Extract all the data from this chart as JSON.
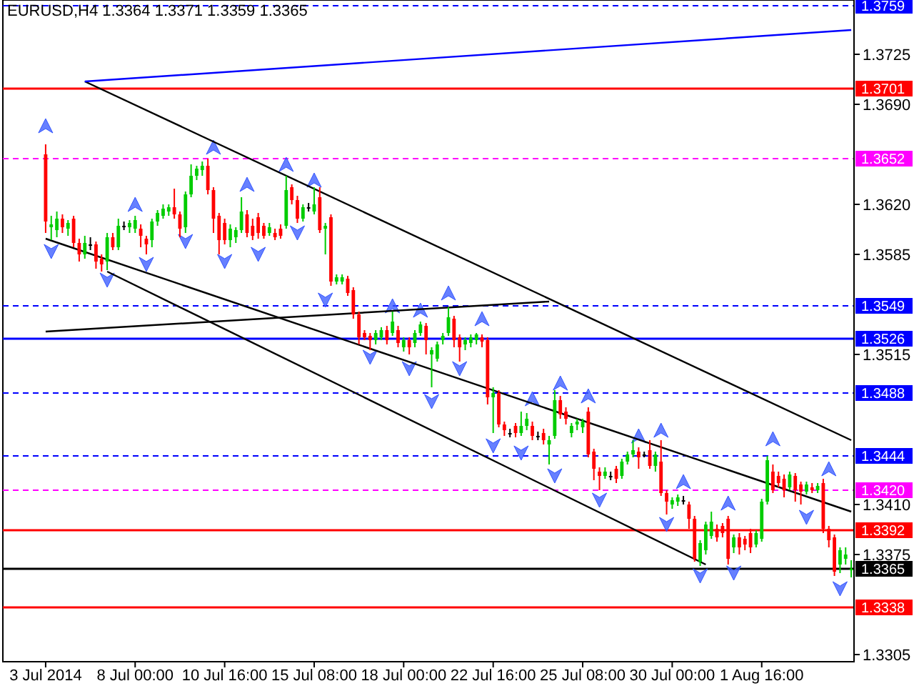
{
  "chart_data": {
    "type": "candlestick",
    "title": "EURUSD,H4  1.3364 1.3371 1.3359 1.3365",
    "categories": [
      "3 Jul 2014",
      null,
      null,
      null,
      null,
      null,
      null,
      null,
      null,
      null,
      null,
      null,
      null,
      null,
      null,
      null,
      "8 Jul 00:00",
      null,
      null,
      null,
      null,
      null,
      null,
      null,
      null,
      null,
      null,
      null,
      null,
      null,
      null,
      null,
      "10 Jul 16:00",
      null,
      null,
      null,
      null,
      null,
      null,
      null,
      null,
      null,
      null,
      null,
      null,
      null,
      null,
      null,
      "15 Jul 08:00",
      null,
      null,
      null,
      null,
      null,
      null,
      null,
      null,
      null,
      null,
      null,
      null,
      null,
      null,
      null,
      "18 Jul 00:00",
      null,
      null,
      null,
      null,
      null,
      null,
      null,
      null,
      null,
      null,
      null,
      null,
      null,
      null,
      null,
      "22 Jul 16:00",
      null,
      null,
      null,
      null,
      null,
      null,
      null,
      null,
      null,
      null,
      null,
      null,
      null,
      null,
      null,
      "25 Jul 08:00",
      null,
      null,
      null,
      null,
      null,
      null,
      null,
      null,
      null,
      null,
      null,
      null,
      null,
      null,
      null,
      "30 Jul 00:00",
      null,
      null,
      null,
      null,
      null,
      null,
      null,
      null,
      null,
      null,
      null,
      null,
      null,
      null,
      null,
      "1 Aug 16:00",
      null,
      null,
      null,
      null,
      null,
      null,
      null,
      null,
      null,
      null,
      null,
      null,
      null,
      null,
      null,
      null
    ],
    "ohlc": [
      [
        1.3655,
        1.3662,
        1.36,
        1.3608
      ],
      [
        1.3604,
        1.3612,
        1.3595,
        1.3606
      ],
      [
        1.3602,
        1.3615,
        1.3597,
        1.361
      ],
      [
        1.361,
        1.3613,
        1.36,
        1.3604
      ],
      [
        1.3603,
        1.3609,
        1.3598,
        1.3607
      ],
      [
        1.361,
        1.3612,
        1.359,
        1.3593
      ],
      [
        1.3593,
        1.3596,
        1.358,
        1.3585
      ],
      [
        1.3585,
        1.3598,
        1.3582,
        1.3593
      ],
      [
        1.3592,
        1.3597,
        1.3588,
        1.3592
      ],
      [
        1.3592,
        1.3594,
        1.3575,
        1.358
      ],
      [
        1.3582,
        1.3585,
        1.3573,
        1.3578
      ],
      [
        1.358,
        1.36,
        1.3574,
        1.3597
      ],
      [
        1.3597,
        1.36,
        1.3588,
        1.359
      ],
      [
        1.359,
        1.361,
        1.3588,
        1.3605
      ],
      [
        1.3605,
        1.3608,
        1.3602,
        1.3605
      ],
      [
        1.3604,
        1.3609,
        1.36,
        1.3607
      ],
      [
        1.3603,
        1.3612,
        1.36,
        1.3609
      ],
      [
        1.3603,
        1.3606,
        1.359,
        1.3598
      ],
      [
        1.3596,
        1.3598,
        1.3585,
        1.3592
      ],
      [
        1.3595,
        1.361,
        1.359,
        1.3608
      ],
      [
        1.3608,
        1.3616,
        1.3605,
        1.3614
      ],
      [
        1.3612,
        1.362,
        1.361,
        1.3617
      ],
      [
        1.3615,
        1.362,
        1.3612,
        1.3618
      ],
      [
        1.3618,
        1.3631,
        1.361,
        1.3613
      ],
      [
        1.3613,
        1.3615,
        1.3597,
        1.3603
      ],
      [
        1.3604,
        1.3629,
        1.36,
        1.3627
      ],
      [
        1.3627,
        1.3648,
        1.3625,
        1.364
      ],
      [
        1.364,
        1.3647,
        1.3637,
        1.3645
      ],
      [
        1.3644,
        1.365,
        1.364,
        1.3647
      ],
      [
        1.3647,
        1.3652,
        1.3627,
        1.363
      ],
      [
        1.363,
        1.3632,
        1.36,
        1.361
      ],
      [
        1.3612,
        1.3614,
        1.3585,
        1.3595
      ],
      [
        1.3607,
        1.361,
        1.3592,
        1.3595
      ],
      [
        1.3595,
        1.3606,
        1.359,
        1.3603
      ],
      [
        1.3597,
        1.3604,
        1.3593,
        1.3602
      ],
      [
        1.3602,
        1.3625,
        1.36,
        1.3615
      ],
      [
        1.3613,
        1.3616,
        1.3597,
        1.36
      ],
      [
        1.3605,
        1.361,
        1.3595,
        1.3598
      ],
      [
        1.3611,
        1.3614,
        1.3596,
        1.36
      ],
      [
        1.3605,
        1.3607,
        1.3596,
        1.3598
      ],
      [
        1.36,
        1.3607,
        1.3598,
        1.3604
      ],
      [
        1.36,
        1.3603,
        1.3595,
        1.3597
      ],
      [
        1.3603,
        1.3606,
        1.3596,
        1.3598
      ],
      [
        1.3605,
        1.364,
        1.3603,
        1.363
      ],
      [
        1.3632,
        1.3634,
        1.362,
        1.3623
      ],
      [
        1.3623,
        1.3626,
        1.3607,
        1.361
      ],
      [
        1.361,
        1.362,
        1.3608,
        1.3618
      ],
      [
        1.3618,
        1.3621,
        1.3615,
        1.3618
      ],
      [
        1.3615,
        1.3632,
        1.3613,
        1.362
      ],
      [
        1.3625,
        1.3632,
        1.36,
        1.3602
      ],
      [
        1.3603,
        1.3607,
        1.3585,
        1.3605
      ],
      [
        1.3611,
        1.3613,
        1.3563,
        1.3566
      ],
      [
        1.3566,
        1.3571,
        1.3564,
        1.3569
      ],
      [
        1.3566,
        1.3571,
        1.3564,
        1.3569
      ],
      [
        1.3568,
        1.357,
        1.3556,
        1.3558
      ],
      [
        1.356,
        1.3562,
        1.354,
        1.3543
      ],
      [
        1.3543,
        1.3545,
        1.3522,
        1.3527
      ],
      [
        1.353,
        1.3532,
        1.3525,
        1.3527
      ],
      [
        1.3528,
        1.353,
        1.3518,
        1.3525
      ],
      [
        1.3525,
        1.3532,
        1.3522,
        1.353
      ],
      [
        1.3527,
        1.3534,
        1.3525,
        1.3532
      ],
      [
        1.3532,
        1.3535,
        1.3522,
        1.3525
      ],
      [
        1.353,
        1.3545,
        1.3528,
        1.3538
      ],
      [
        1.3532,
        1.3535,
        1.352,
        1.3523
      ],
      [
        1.352,
        1.3527,
        1.3517,
        1.3525
      ],
      [
        1.3525,
        1.3527,
        1.3515,
        1.352
      ],
      [
        1.3523,
        1.3532,
        1.352,
        1.353
      ],
      [
        1.353,
        1.3538,
        1.3528,
        1.3536
      ],
      [
        1.3535,
        1.3537,
        1.3515,
        1.3525
      ],
      [
        1.3515,
        1.352,
        1.3492,
        1.3518
      ],
      [
        1.3512,
        1.3524,
        1.351,
        1.3522
      ],
      [
        1.3525,
        1.353,
        1.3522,
        1.3528
      ],
      [
        1.353,
        1.3548,
        1.3528,
        1.3541
      ],
      [
        1.354,
        1.3542,
        1.352,
        1.3525
      ],
      [
        1.3527,
        1.3529,
        1.351,
        1.352
      ],
      [
        1.3522,
        1.3527,
        1.3518,
        1.3525
      ],
      [
        1.3523,
        1.3529,
        1.352,
        1.3527
      ],
      [
        1.3525,
        1.353,
        1.3522,
        1.3529
      ],
      [
        1.3527,
        1.3529,
        1.352,
        1.3524
      ],
      [
        1.3525,
        1.3527,
        1.348,
        1.3485
      ],
      [
        1.3485,
        1.3492,
        1.346,
        1.3488
      ],
      [
        1.3488,
        1.349,
        1.3464,
        1.3466
      ],
      [
        1.3466,
        1.3468,
        1.3458,
        1.3462
      ],
      [
        1.346,
        1.3463,
        1.3457,
        1.346
      ],
      [
        1.3465,
        1.3467,
        1.3457,
        1.346
      ],
      [
        1.346,
        1.3475,
        1.3458,
        1.3465
      ],
      [
        1.3465,
        1.3474,
        1.3462,
        1.347
      ],
      [
        1.3465,
        1.3468,
        1.3455,
        1.3458
      ],
      [
        1.3458,
        1.3461,
        1.3455,
        1.3458
      ],
      [
        1.346,
        1.3463,
        1.3452,
        1.3455
      ],
      [
        1.3452,
        1.3458,
        1.3438,
        1.3455
      ],
      [
        1.3458,
        1.349,
        1.3456,
        1.3483
      ],
      [
        1.3483,
        1.3486,
        1.347,
        1.3473
      ],
      [
        1.3475,
        1.3478,
        1.3466,
        1.347
      ],
      [
        1.346,
        1.3467,
        1.3457,
        1.3465
      ],
      [
        1.3466,
        1.347,
        1.3462,
        1.3468
      ],
      [
        1.3464,
        1.347,
        1.346,
        1.3468
      ],
      [
        1.3475,
        1.3478,
        1.3443,
        1.3445
      ],
      [
        1.3447,
        1.3449,
        1.3427,
        1.3435
      ],
      [
        1.3433,
        1.3436,
        1.342,
        1.343
      ],
      [
        1.343,
        1.3436,
        1.3428,
        1.3433
      ],
      [
        1.343,
        1.3433,
        1.3427,
        1.343
      ],
      [
        1.3435,
        1.3437,
        1.3425,
        1.3428
      ],
      [
        1.343,
        1.3442,
        1.3428,
        1.344
      ],
      [
        1.344,
        1.3447,
        1.3438,
        1.3445
      ],
      [
        1.3445,
        1.3455,
        1.3443,
        1.3448
      ],
      [
        1.3447,
        1.345,
        1.3435,
        1.3443
      ],
      [
        1.3445,
        1.3447,
        1.3443,
        1.3445
      ],
      [
        1.3448,
        1.3455,
        1.3435,
        1.3437
      ],
      [
        1.3437,
        1.3447,
        1.3433,
        1.3445
      ],
      [
        1.344,
        1.3455,
        1.3416,
        1.3418
      ],
      [
        1.3418,
        1.342,
        1.3403,
        1.3412
      ],
      [
        1.341,
        1.3415,
        1.3407,
        1.3413
      ],
      [
        1.3412,
        1.3417,
        1.3409,
        1.3415
      ],
      [
        1.3413,
        1.3416,
        1.341,
        1.3413
      ],
      [
        1.341,
        1.3412,
        1.3393,
        1.34
      ],
      [
        1.34,
        1.3402,
        1.337,
        1.3372
      ],
      [
        1.337,
        1.3385,
        1.3367,
        1.3383
      ],
      [
        1.3378,
        1.3398,
        1.3375,
        1.3396
      ],
      [
        1.3388,
        1.3405,
        1.3386,
        1.3398
      ],
      [
        1.3393,
        1.3396,
        1.3384,
        1.3387
      ],
      [
        1.3395,
        1.3397,
        1.3387,
        1.339
      ],
      [
        1.34,
        1.3402,
        1.3368,
        1.3372
      ],
      [
        1.338,
        1.3389,
        1.3376,
        1.3387
      ],
      [
        1.3387,
        1.339,
        1.3375,
        1.338
      ],
      [
        1.3386,
        1.3388,
        1.3378,
        1.3382
      ],
      [
        1.339,
        1.3393,
        1.3376,
        1.338
      ],
      [
        1.3382,
        1.3392,
        1.338,
        1.339
      ],
      [
        1.3386,
        1.3414,
        1.3384,
        1.3412
      ],
      [
        1.3412,
        1.3444,
        1.341,
        1.3441
      ],
      [
        1.3433,
        1.3438,
        1.3418,
        1.342
      ],
      [
        1.343,
        1.3433,
        1.3422,
        1.3425
      ],
      [
        1.3428,
        1.3431,
        1.3415,
        1.342
      ],
      [
        1.3422,
        1.3433,
        1.342,
        1.3431
      ],
      [
        1.343,
        1.3432,
        1.3412,
        1.342
      ],
      [
        1.3424,
        1.3426,
        1.341,
        1.3419
      ],
      [
        1.3419,
        1.3426,
        1.3417,
        1.3424
      ],
      [
        1.3422,
        1.3425,
        1.3418,
        1.342
      ],
      [
        1.342,
        1.3425,
        1.3418,
        1.3423
      ],
      [
        1.3425,
        1.3428,
        1.339,
        1.3393
      ],
      [
        1.3393,
        1.3395,
        1.338,
        1.3385
      ],
      [
        1.3387,
        1.3389,
        1.336,
        1.3363
      ],
      [
        1.3368,
        1.338,
        1.3362,
        1.3378
      ],
      [
        1.3372,
        1.338,
        1.3368,
        1.3375
      ],
      [
        1.3364,
        1.3371,
        1.3359,
        1.3365
      ]
    ],
    "series": [
      {
        "type": "scatter",
        "color": "#3355ff",
        "values": [
          1.3675,
          null,
          null,
          null,
          null,
          null,
          null,
          null,
          null,
          null,
          null,
          null,
          null,
          null,
          null,
          null,
          1.362,
          null,
          null,
          null,
          null,
          null,
          null,
          null,
          null,
          null,
          null,
          null,
          null,
          null,
          1.366,
          null,
          null,
          null,
          null,
          null,
          1.3634,
          null,
          null,
          null,
          null,
          null,
          null,
          1.3648,
          null,
          null,
          null,
          null,
          1.3637,
          null,
          null,
          null,
          null,
          null,
          null,
          null,
          null,
          null,
          null,
          null,
          null,
          null,
          1.3549,
          null,
          null,
          null,
          null,
          1.3546,
          null,
          null,
          null,
          null,
          1.3558,
          null,
          null,
          null,
          null,
          null,
          1.354,
          null,
          null,
          null,
          null,
          null,
          null,
          null,
          null,
          1.3484,
          null,
          null,
          null,
          null,
          1.3495,
          null,
          null,
          null,
          null,
          1.3486,
          null,
          null,
          null,
          null,
          null,
          null,
          null,
          null,
          1.3458,
          null,
          null,
          null,
          1.3462,
          null,
          null,
          null,
          1.3426,
          null,
          null,
          null,
          null,
          null,
          null,
          null,
          1.3411,
          null,
          null,
          null,
          null,
          null,
          null,
          null,
          1.3456,
          null,
          null,
          null,
          null,
          null,
          null,
          null,
          null,
          null,
          1.3435,
          null,
          null,
          null,
          null
        ]
      },
      {
        "type": "scatter",
        "color": "#3355ff",
        "values": [
          null,
          1.3587,
          null,
          null,
          null,
          null,
          null,
          null,
          null,
          null,
          null,
          1.3567,
          null,
          null,
          null,
          null,
          null,
          null,
          1.3578,
          null,
          null,
          null,
          null,
          null,
          null,
          1.3594,
          null,
          null,
          null,
          null,
          null,
          null,
          1.358,
          null,
          null,
          null,
          null,
          null,
          1.3585,
          null,
          null,
          null,
          null,
          null,
          null,
          1.36,
          null,
          null,
          null,
          null,
          1.3553,
          null,
          null,
          null,
          null,
          null,
          null,
          null,
          1.3513,
          null,
          null,
          null,
          null,
          null,
          null,
          1.3505,
          null,
          null,
          null,
          1.3482,
          null,
          null,
          null,
          null,
          1.3505,
          null,
          null,
          null,
          null,
          null,
          1.3451,
          null,
          null,
          null,
          null,
          1.3446,
          null,
          null,
          null,
          null,
          null,
          1.343,
          null,
          null,
          null,
          null,
          null,
          null,
          null,
          1.3413,
          null,
          null,
          null,
          null,
          null,
          null,
          null,
          null,
          null,
          null,
          null,
          1.3396,
          null,
          null,
          null,
          null,
          null,
          1.336,
          null,
          null,
          null,
          null,
          null,
          1.3362,
          null,
          null,
          null,
          null,
          null,
          null,
          null,
          null,
          null,
          null,
          null,
          null,
          1.3401,
          null,
          null,
          null,
          null,
          null,
          1.3351,
          null,
          null
        ]
      },
      {
        "type": "line",
        "color": "#000000",
        "values": [
          null,
          null,
          null,
          null,
          null,
          null,
          null,
          1.3706,
          null,
          null,
          null,
          null,
          null,
          null,
          null,
          null,
          null,
          null,
          null,
          null,
          null,
          null,
          null,
          null,
          null,
          null,
          null,
          null,
          null,
          null,
          null,
          null,
          null,
          null,
          null,
          null,
          null,
          null,
          null,
          null,
          null,
          null,
          null,
          null,
          null,
          null,
          null,
          null,
          null,
          null,
          null,
          null,
          null,
          null,
          null,
          null,
          null,
          null,
          null,
          null,
          null,
          null,
          null,
          null,
          null,
          null,
          null,
          null,
          null,
          null,
          null,
          null,
          null,
          null,
          null,
          null,
          null,
          null,
          null,
          null,
          null,
          null,
          null,
          null,
          null,
          null,
          null,
          null,
          null,
          null,
          null,
          null,
          null,
          null,
          null,
          null,
          null,
          null,
          null,
          null,
          null,
          null,
          null,
          null,
          null,
          null,
          null,
          null,
          null,
          null,
          null,
          null,
          null,
          null,
          null,
          null,
          null,
          null,
          null,
          null,
          null,
          null,
          null,
          null,
          null,
          null,
          null,
          null,
          null,
          null,
          null,
          null,
          null,
          null,
          null,
          null,
          null,
          null,
          null,
          null,
          null,
          null,
          null,
          null,
          1.3455
        ]
      },
      {
        "type": "line",
        "color": "#000000",
        "values": [
          1.3596,
          null,
          null,
          null,
          null,
          null,
          null,
          null,
          null,
          null,
          null,
          null,
          null,
          null,
          null,
          null,
          null,
          null,
          null,
          null,
          null,
          null,
          null,
          null,
          null,
          null,
          null,
          null,
          null,
          null,
          null,
          null,
          null,
          null,
          null,
          null,
          null,
          null,
          null,
          null,
          null,
          null,
          null,
          null,
          null,
          null,
          null,
          null,
          null,
          null,
          null,
          null,
          null,
          null,
          null,
          null,
          null,
          null,
          null,
          null,
          null,
          null,
          null,
          null,
          null,
          null,
          null,
          null,
          null,
          null,
          null,
          null,
          null,
          null,
          null,
          null,
          null,
          null,
          null,
          null,
          null,
          null,
          null,
          null,
          null,
          null,
          null,
          null,
          null,
          null,
          null,
          null,
          null,
          null,
          null,
          null,
          null,
          null,
          null,
          null,
          null,
          null,
          null,
          null,
          null,
          null,
          null,
          null,
          null,
          null,
          null,
          null,
          null,
          null,
          null,
          null,
          null,
          null,
          null,
          null,
          null,
          null,
          null,
          null,
          null,
          null,
          null,
          null,
          null,
          null,
          null,
          null,
          null,
          null,
          null,
          null,
          null,
          null,
          null,
          null,
          null,
          null,
          null,
          null,
          1.3405
        ]
      },
      {
        "type": "line",
        "color": "#000000",
        "values": [
          null,
          null,
          null,
          null,
          null,
          null,
          null,
          null,
          null,
          null,
          null,
          1.3573,
          null,
          null,
          null,
          null,
          null,
          null,
          null,
          null,
          null,
          null,
          null,
          null,
          null,
          null,
          null,
          null,
          null,
          null,
          null,
          null,
          null,
          null,
          null,
          null,
          null,
          null,
          null,
          null,
          null,
          null,
          null,
          null,
          null,
          null,
          null,
          null,
          null,
          null,
          null,
          null,
          null,
          null,
          null,
          null,
          null,
          null,
          null,
          null,
          null,
          null,
          null,
          null,
          null,
          null,
          null,
          null,
          null,
          null,
          null,
          null,
          null,
          null,
          null,
          null,
          null,
          null,
          null,
          null,
          null,
          null,
          null,
          null,
          null,
          null,
          null,
          null,
          null,
          null,
          null,
          null,
          null,
          null,
          null,
          null,
          null,
          null,
          null,
          null,
          null,
          null,
          null,
          null,
          null,
          null,
          null,
          null,
          null,
          null,
          null,
          null,
          null,
          null,
          null,
          null,
          null,
          null,
          1.3368,
          null,
          null,
          null,
          null,
          null,
          null,
          null,
          null,
          null,
          null,
          null,
          null,
          null,
          null,
          null,
          null,
          null,
          null,
          null,
          null,
          null,
          null,
          null,
          null,
          null,
          null
        ]
      },
      {
        "type": "line",
        "color": "#000000",
        "values": [
          1.3531,
          null,
          null,
          null,
          null,
          null,
          null,
          null,
          null,
          null,
          null,
          null,
          null,
          null,
          null,
          null,
          null,
          null,
          null,
          null,
          null,
          null,
          null,
          null,
          null,
          null,
          null,
          null,
          null,
          null,
          null,
          null,
          null,
          null,
          null,
          null,
          null,
          null,
          null,
          null,
          null,
          null,
          null,
          null,
          null,
          null,
          null,
          null,
          null,
          null,
          null,
          null,
          null,
          null,
          null,
          null,
          null,
          null,
          null,
          null,
          null,
          null,
          null,
          null,
          null,
          null,
          null,
          null,
          null,
          null,
          null,
          null,
          null,
          null,
          null,
          null,
          null,
          null,
          null,
          null,
          null,
          null,
          null,
          null,
          null,
          null,
          null,
          null,
          null,
          null,
          1.3552,
          null,
          null,
          null,
          null,
          null,
          null,
          null,
          null,
          null,
          null,
          null,
          null,
          null,
          null,
          null,
          null,
          null,
          null,
          null,
          null,
          null,
          null,
          null,
          null,
          null,
          null,
          null,
          null,
          null,
          null,
          null,
          null,
          null,
          null,
          null,
          null,
          null,
          null,
          null,
          null,
          null,
          null,
          null,
          null,
          null,
          null,
          null,
          null,
          null,
          null,
          null,
          null,
          null,
          null
        ]
      },
      {
        "type": "line",
        "color": "#0000ff",
        "values": [
          null,
          null,
          null,
          null,
          null,
          null,
          null,
          1.3706,
          null,
          null,
          null,
          null,
          null,
          null,
          null,
          null,
          null,
          null,
          null,
          null,
          null,
          null,
          null,
          null,
          null,
          null,
          null,
          null,
          null,
          null,
          null,
          null,
          null,
          null,
          null,
          null,
          null,
          null,
          null,
          null,
          null,
          null,
          null,
          null,
          null,
          null,
          null,
          null,
          null,
          null,
          null,
          null,
          null,
          null,
          null,
          null,
          null,
          null,
          null,
          null,
          null,
          null,
          null,
          null,
          null,
          null,
          null,
          null,
          null,
          null,
          null,
          null,
          null,
          null,
          null,
          null,
          null,
          null,
          null,
          null,
          null,
          null,
          null,
          null,
          null,
          null,
          null,
          null,
          null,
          null,
          null,
          null,
          null,
          null,
          null,
          null,
          null,
          null,
          null,
          null,
          null,
          null,
          null,
          null,
          null,
          null,
          null,
          null,
          null,
          null,
          null,
          null,
          null,
          null,
          null,
          null,
          null,
          null,
          null,
          null,
          null,
          null,
          null,
          null,
          null,
          null,
          null,
          null,
          null,
          null,
          null,
          null,
          null,
          null,
          null,
          null,
          null,
          null,
          null,
          null,
          null,
          null,
          null,
          null,
          1.3742
        ]
      }
    ],
    "ylim": [
      1.33,
      1.3763
    ],
    "yticks": [
      1.3725,
      {
        "value": 1.369,
        "label": "1.3690"
      },
      {
        "value": 1.362,
        "label": "1.3620"
      },
      1.3585,
      1.3515,
      {
        "value": 1.341,
        "label": "1.3410"
      },
      1.3375,
      1.3305
    ],
    "ref_lines": [
      {
        "axis": "y",
        "value": 1.3759,
        "label": "1.3759",
        "color": "#0000ff",
        "line_style": "dashed"
      },
      {
        "axis": "y",
        "value": 1.3701,
        "label": "1.3701",
        "color": "#ff0000",
        "line_style": "solid"
      },
      {
        "axis": "y",
        "value": 1.3652,
        "label": "1.3652",
        "color": "#ff00ff",
        "line_style": "dashed"
      },
      {
        "axis": "y",
        "value": 1.3549,
        "label": "1.3549",
        "color": "#0000ff",
        "line_style": "dashed"
      },
      {
        "axis": "y",
        "value": 1.3526,
        "label": "1.3526",
        "color": "#0000ff",
        "line_style": "solid"
      },
      {
        "axis": "y",
        "value": 1.3488,
        "label": "1.3488",
        "color": "#0000ff",
        "line_style": "dashed"
      },
      {
        "axis": "y",
        "value": 1.3444,
        "label": "1.3444",
        "color": "#0000ff",
        "line_style": "dashed"
      },
      {
        "axis": "y",
        "value": 1.342,
        "label": "1.3420",
        "color": "#ff00ff",
        "line_style": "dashed"
      },
      {
        "axis": "y",
        "value": 1.3392,
        "label": "1.3392",
        "color": "#ff0000",
        "line_style": "solid"
      },
      {
        "axis": "y",
        "value": 1.3365,
        "label": "1.3365",
        "color": "#000000",
        "line_style": "solid"
      },
      {
        "axis": "y",
        "value": 1.3338,
        "label": "1.3338",
        "color": "#ff0000",
        "line_style": "solid"
      }
    ]
  }
}
